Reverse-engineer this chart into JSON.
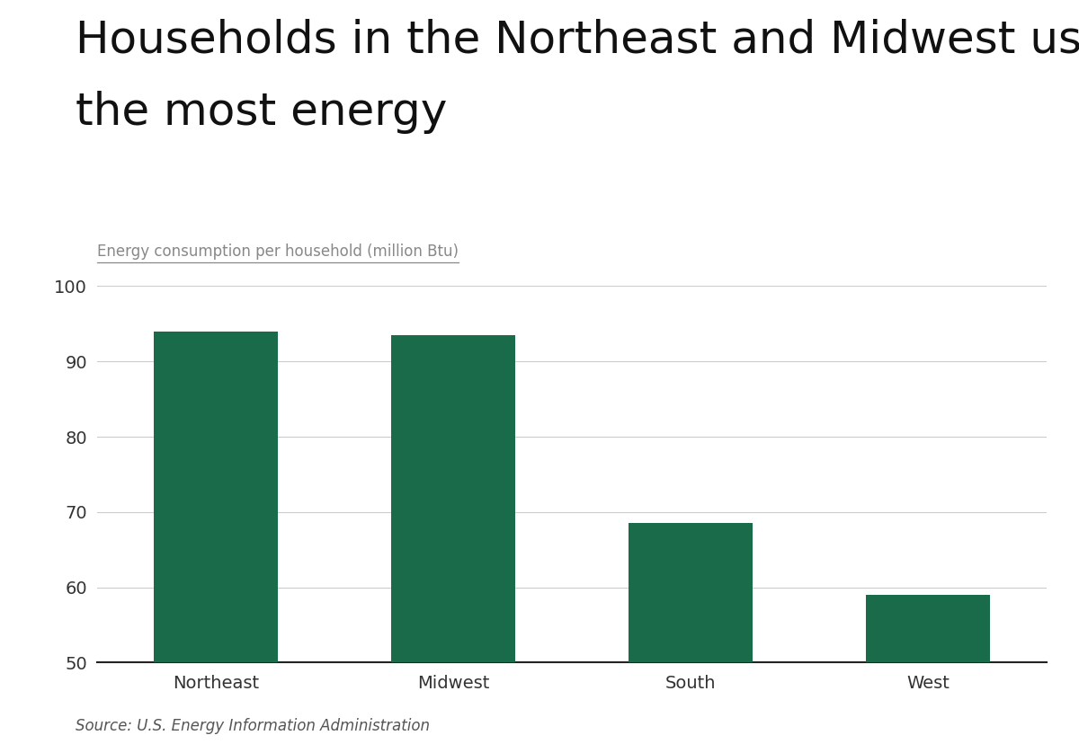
{
  "title_line1": "Households in the Northeast and Midwest use",
  "title_line2": "the most energy",
  "ylabel": "Energy consumption per household (million Btu)",
  "categories": [
    "Northeast",
    "Midwest",
    "South",
    "West"
  ],
  "values": [
    94.0,
    93.5,
    68.5,
    59.0
  ],
  "bar_color": "#1a6b4a",
  "ylim": [
    50,
    100
  ],
  "yticks": [
    50,
    60,
    70,
    80,
    90,
    100
  ],
  "background_color": "#ffffff",
  "title_fontsize": 36,
  "ylabel_fontsize": 12,
  "tick_fontsize": 14,
  "xtick_fontsize": 14,
  "source_text": "Source: U.S. Energy Information Administration",
  "source_fontsize": 12,
  "bar_width": 0.52
}
